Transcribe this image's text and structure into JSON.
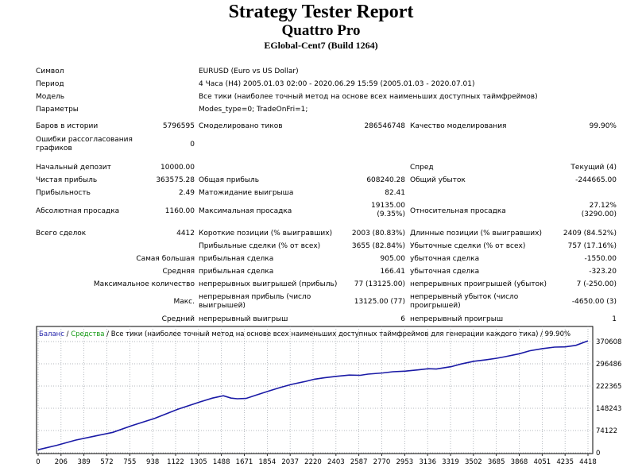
{
  "header": {
    "title": "Strategy Tester Report",
    "expert": "Quattro Pro",
    "server": "EGlobal-Cent7 (Build 1264)"
  },
  "info": {
    "symbol_label": "Символ",
    "symbol": "EURUSD (Euro vs US Dollar)",
    "period_label": "Период",
    "period": "4 Часа (H4) 2005.01.03 02:00 - 2020.06.29 15:59 (2005.01.03 - 2020.07.01)",
    "model_label": "Модель",
    "model": "Все тики (наиболее точный метод на основе всех наименьших доступных таймфреймов)",
    "params_label": "Параметры",
    "params": "Modes_type=0; TradeOnFri=1;"
  },
  "quality": {
    "bars_label": "Баров в истории",
    "bars": "5796595",
    "ticks_label": "Смоделировано тиков",
    "ticks": "286546748",
    "quality_label": "Качество моделирования",
    "quality": "99.90%",
    "errors_label_1": "Ошибки рассогласования",
    "errors_label_2": "графиков",
    "errors": "0"
  },
  "results": {
    "deposit_label": "Начальный депозит",
    "deposit": "10000.00",
    "spread_label": "Спред",
    "spread": "Текущий (4)",
    "net_label": "Чистая прибыль",
    "net": "363575.28",
    "gross_profit_label": "Общая прибыль",
    "gross_profit": "608240.28",
    "gross_loss_label": "Общий убыток",
    "gross_loss": "-244665.00",
    "pf_label": "Прибыльность",
    "pf": "2.49",
    "payoff_label": "Матожидание выигрыша",
    "payoff": "82.41",
    "abs_dd_label": "Абсолютная просадка",
    "abs_dd": "1160.00",
    "max_dd_label": "Максимальная просадка",
    "max_dd_1": "19135.00",
    "max_dd_2": "(9.35%)",
    "rel_dd_label": "Относительная просадка",
    "rel_dd_1": "27.12%",
    "rel_dd_2": "(3290.00)"
  },
  "trades": {
    "total_label": "Всего сделок",
    "total": "4412",
    "short_label": "Короткие позиции (% выигравших)",
    "short": "2003 (80.83%)",
    "long_label": "Длинные позиции (% выигравших)",
    "long": "2409 (84.52%)",
    "profit_trades_label": "Прибыльные сделки (% от всех)",
    "profit_trades": "3655 (82.84%)",
    "loss_trades_label": "Убыточные сделки (% от всех)",
    "loss_trades": "757 (17.16%)",
    "largest_label": "Самая большая",
    "largest_profit_label": "прибыльная сделка",
    "largest_profit": "905.00",
    "largest_loss_label": "убыточная сделка",
    "largest_loss": "-1550.00",
    "average_label": "Средняя",
    "average_profit_label": "прибыльная сделка",
    "average_profit": "166.41",
    "average_loss_label": "убыточная сделка",
    "average_loss": "-323.20",
    "max_count_label": "Максимальное количество",
    "max_wins_label": "непрерывных выигрышей (прибыль)",
    "max_wins": "77 (13125.00)",
    "max_losses_label": "непрерывных проигрышей (убыток)",
    "max_losses": "7 (-250.00)",
    "max_label": "Макс.",
    "max_profit_label_1": "непрерывная прибыль (число",
    "max_profit_label_2": "выигрышей)",
    "max_profit": "13125.00 (77)",
    "max_loss_label_1": "непрерывный убыток (число",
    "max_loss_label_2": "проигрышей)",
    "max_loss": "-4650.00 (3)",
    "avg_label": "Средний",
    "avg_wins_label": "непрерывный выигрыш",
    "avg_wins": "6",
    "avg_losses_label": "непрерывный проигрыш",
    "avg_losses": "1"
  },
  "chart_data": {
    "type": "line",
    "legend": {
      "balance": "Баланс",
      "sep1": " / ",
      "equity": "Средства",
      "sep2": " / ",
      "model": "Все тики (наиболее точный метод на основе всех наименьших доступных таймфреймов для генерации каждого тика) / 99.90%"
    },
    "colors": {
      "line": "#1a1aa6",
      "grid": "#9aa0a8",
      "border": "#000000",
      "balance_text": "#2222aa",
      "equity_text": "#119911"
    },
    "x_ticks": [
      "0",
      "206",
      "389",
      "572",
      "755",
      "938",
      "1122",
      "1305",
      "1488",
      "1671",
      "1854",
      "2037",
      "2220",
      "2403",
      "2587",
      "2770",
      "2953",
      "3136",
      "3319",
      "3502",
      "3685",
      "3868",
      "4051",
      "4235",
      "4418"
    ],
    "y_ticks": [
      "370608",
      "296486",
      "222365",
      "148243",
      "74122",
      "0"
    ],
    "xlim": [
      0,
      4418
    ],
    "ylim": [
      0,
      370608
    ],
    "series": [
      {
        "x": [
          0,
          150,
          300,
          450,
          600,
          750,
          938,
          1122,
          1305,
          1400,
          1488,
          1550,
          1600,
          1671,
          1750,
          1854,
          1950,
          2037,
          2150,
          2220,
          2300,
          2403,
          2500,
          2587,
          2650,
          2770,
          2850,
          2953,
          3050,
          3136,
          3200,
          3319,
          3400,
          3502,
          3600,
          3685,
          3750,
          3868,
          3950,
          4051,
          4150,
          4235,
          4320,
          4418
        ],
        "y": [
          10000,
          25000,
          42000,
          55000,
          68000,
          90000,
          115000,
          145000,
          170000,
          182000,
          190000,
          182000,
          180000,
          181000,
          192000,
          206000,
          218000,
          228000,
          238000,
          245000,
          250000,
          255000,
          259000,
          258000,
          262000,
          266000,
          270000,
          272000,
          276000,
          280000,
          279000,
          287000,
          296000,
          305000,
          310000,
          315000,
          320000,
          330000,
          340000,
          347000,
          352000,
          353000,
          358000,
          373000
        ]
      }
    ]
  }
}
